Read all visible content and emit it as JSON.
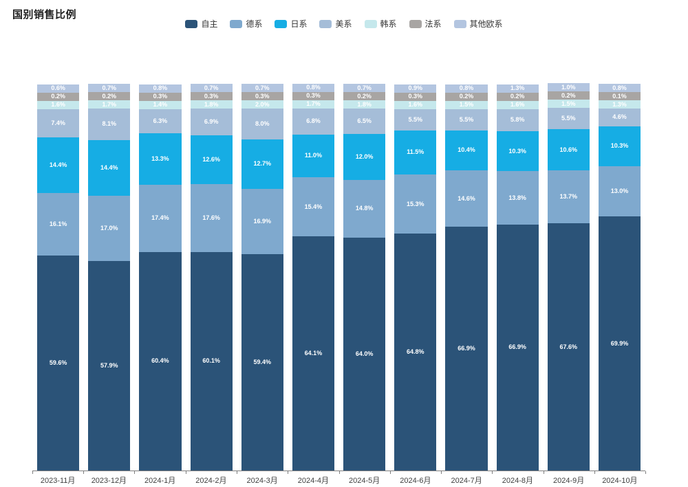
{
  "title": "国别销售比例",
  "style": {
    "accent_dark": "#2B5378",
    "axis_color": "#7f7f7f",
    "title_color": "#1f1f1f",
    "legend_text_color": "#333333",
    "tick_label_color": "#404040",
    "value_label_color": "#ffffff",
    "background": "#ffffff"
  },
  "chart_data": {
    "type": "bar",
    "stacked": true,
    "percent_stacked": true,
    "unit": "%",
    "title": "国别销售比例",
    "xlabel": "",
    "ylabel": "",
    "ylim": [
      0,
      100
    ],
    "grid": false,
    "legend_position": "top",
    "value_labels": "inside",
    "categories": [
      "2023-11月",
      "2023-12月",
      "2024-1月",
      "2024-2月",
      "2024-3月",
      "2024-4月",
      "2024-5月",
      "2024-6月",
      "2024-7月",
      "2024-8月",
      "2024-9月",
      "2024-10月"
    ],
    "series": [
      {
        "name": "自主",
        "color": "#2B5378",
        "values": [
          59.6,
          57.9,
          60.4,
          60.1,
          59.4,
          64.1,
          64.0,
          64.8,
          66.9,
          66.9,
          67.6,
          69.9
        ]
      },
      {
        "name": "德系",
        "color": "#7FA9CE",
        "values": [
          16.1,
          17.0,
          17.4,
          17.6,
          16.9,
          15.4,
          14.8,
          15.3,
          14.6,
          13.8,
          13.7,
          13.0
        ]
      },
      {
        "name": "日系",
        "color": "#16ADE4",
        "values": [
          14.4,
          14.4,
          13.3,
          12.6,
          12.7,
          11.0,
          12.0,
          11.5,
          10.4,
          10.3,
          10.6,
          10.3
        ]
      },
      {
        "name": "美系",
        "color": "#A5BDD8",
        "values": [
          7.4,
          8.1,
          6.3,
          6.9,
          8.0,
          6.8,
          6.5,
          5.5,
          5.5,
          5.8,
          5.5,
          4.6
        ]
      },
      {
        "name": "韩系",
        "color": "#C5E8EC",
        "values": [
          1.6,
          1.7,
          1.4,
          1.8,
          2.0,
          1.7,
          1.8,
          1.6,
          1.5,
          1.6,
          1.5,
          1.3
        ]
      },
      {
        "name": "法系",
        "color": "#A8A5A3",
        "values": [
          0.2,
          0.2,
          0.3,
          0.3,
          0.3,
          0.3,
          0.2,
          0.3,
          0.2,
          0.2,
          0.2,
          0.1
        ]
      },
      {
        "name": "其他欧系",
        "color": "#B3C5E0",
        "values": [
          0.6,
          0.7,
          0.8,
          0.7,
          0.7,
          0.8,
          0.7,
          0.9,
          0.8,
          1.3,
          1.0,
          0.8
        ]
      }
    ]
  }
}
